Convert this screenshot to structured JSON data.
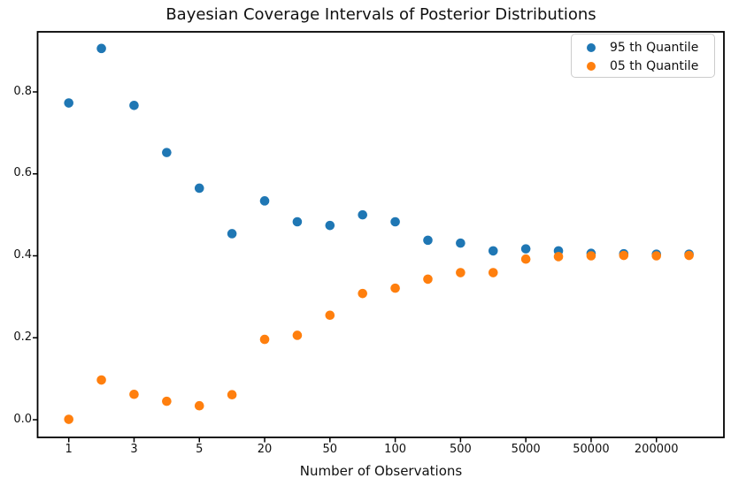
{
  "chart_data": {
    "type": "scatter",
    "title": "Bayesian Coverage Intervals of Posterior Distributions",
    "xlabel": "Number of Observations",
    "ylabel": "",
    "x_axis_note": "20 evenly spaced point positions; tick labels shown only at every other position",
    "n_points_per_series": 20,
    "x_tick_labels": [
      "1",
      "3",
      "5",
      "20",
      "50",
      "100",
      "500",
      "5000",
      "50000",
      "200000"
    ],
    "x_tick_slots": [
      0,
      2,
      4,
      6,
      8,
      10,
      12,
      14,
      16,
      18
    ],
    "y_ticks": [
      0.0,
      0.2,
      0.4,
      0.6,
      0.8
    ],
    "y_tick_labels": [
      "0.0",
      "0.2",
      "0.4",
      "0.6",
      "0.8"
    ],
    "ylim": [
      -0.045,
      0.947
    ],
    "grid": false,
    "legend_position": "upper right",
    "series": [
      {
        "name": "95 th Quantile",
        "color": "#1f77b4",
        "values": [
          0.773,
          0.906,
          0.767,
          0.652,
          0.565,
          0.454,
          0.534,
          0.483,
          0.474,
          0.5,
          0.483,
          0.438,
          0.431,
          0.412,
          0.417,
          0.412,
          0.406,
          0.405,
          0.404,
          0.404
        ]
      },
      {
        "name": "05 th Quantile",
        "color": "#ff7f0e",
        "values": [
          0.001,
          0.097,
          0.062,
          0.045,
          0.034,
          0.061,
          0.196,
          0.206,
          0.255,
          0.308,
          0.321,
          0.343,
          0.359,
          0.359,
          0.392,
          0.398,
          0.4,
          0.401,
          0.4,
          0.401
        ]
      }
    ]
  }
}
